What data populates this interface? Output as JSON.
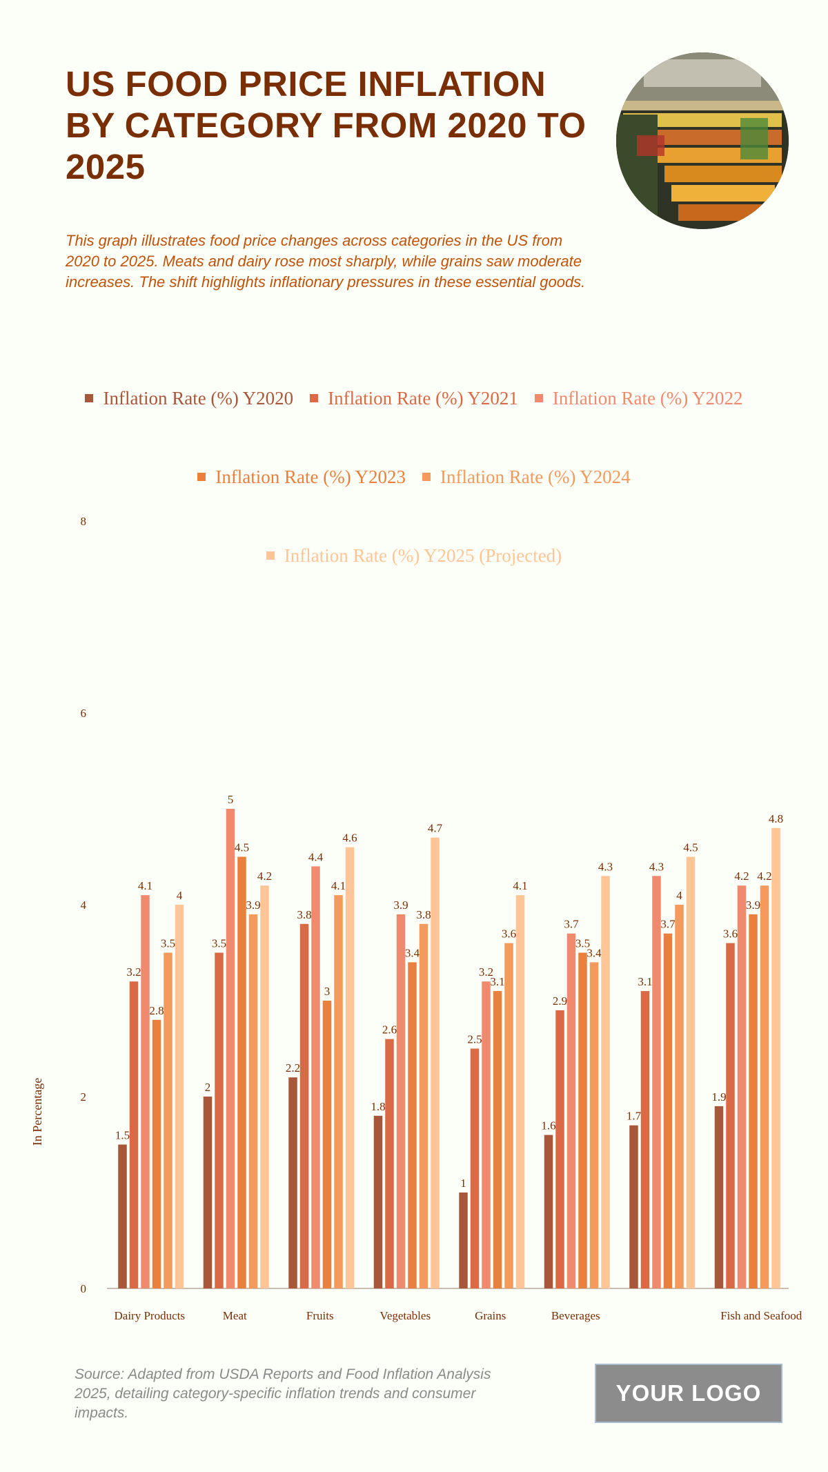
{
  "header": {
    "title": "US FOOD PRICE INFLATION BY CATEGORY FROM 2020 TO 2025",
    "subtitle": "This graph illustrates food price changes across categories in the US from 2020 to 2025. Meats and dairy rose most sharply, while grains saw moderate increases. The shift highlights inflationary pressures in these essential goods."
  },
  "footer": {
    "source": "Source: Adapted from USDA Reports and Food Inflation Analysis 2025, detailing category-specific inflation trends and consumer impacts.",
    "logo": "YOUR LOGO"
  },
  "colors": {
    "title": "#7a2e05",
    "subtitle": "#c0530a",
    "series": [
      "#a9573a",
      "#d96a45",
      "#ef8a6e",
      "#e9803e",
      "#f39a5c",
      "#ffc596"
    ]
  },
  "chart_data": {
    "type": "bar",
    "title": "",
    "xlabel": "",
    "ylabel": "In Percentage",
    "ylim": [
      0,
      8
    ],
    "yticks": [
      0,
      2,
      4,
      6,
      8
    ],
    "grid": false,
    "legend_position": "top",
    "categories": [
      "Dairy Products",
      "Meat",
      "Fruits",
      "Vegetables",
      "Grains",
      "Beverages",
      "",
      "Fish and Seafood"
    ],
    "series": [
      {
        "name": "Inflation Rate (%) Y2020",
        "values": [
          1.5,
          2,
          2.2,
          1.8,
          1,
          1.6,
          1.7,
          1.9
        ]
      },
      {
        "name": "Inflation Rate (%) Y2021",
        "values": [
          3.2,
          3.5,
          3.8,
          2.6,
          2.5,
          2.9,
          3.1,
          3.6
        ]
      },
      {
        "name": "Inflation Rate (%) Y2022",
        "values": [
          4.1,
          5,
          4.4,
          3.9,
          3.2,
          3.7,
          4.3,
          4.2
        ]
      },
      {
        "name": "Inflation Rate (%) Y2023",
        "values": [
          2.8,
          4.5,
          3,
          3.4,
          3.1,
          3.5,
          3.7,
          3.9
        ]
      },
      {
        "name": "Inflation Rate (%) Y2024",
        "values": [
          3.5,
          3.9,
          4.1,
          3.8,
          3.6,
          3.4,
          4,
          4.2
        ]
      },
      {
        "name": "Inflation Rate (%) Y2025 (Projected)",
        "values": [
          4,
          4.2,
          4.6,
          4.7,
          4.1,
          4.3,
          4.5,
          4.8
        ]
      }
    ]
  }
}
